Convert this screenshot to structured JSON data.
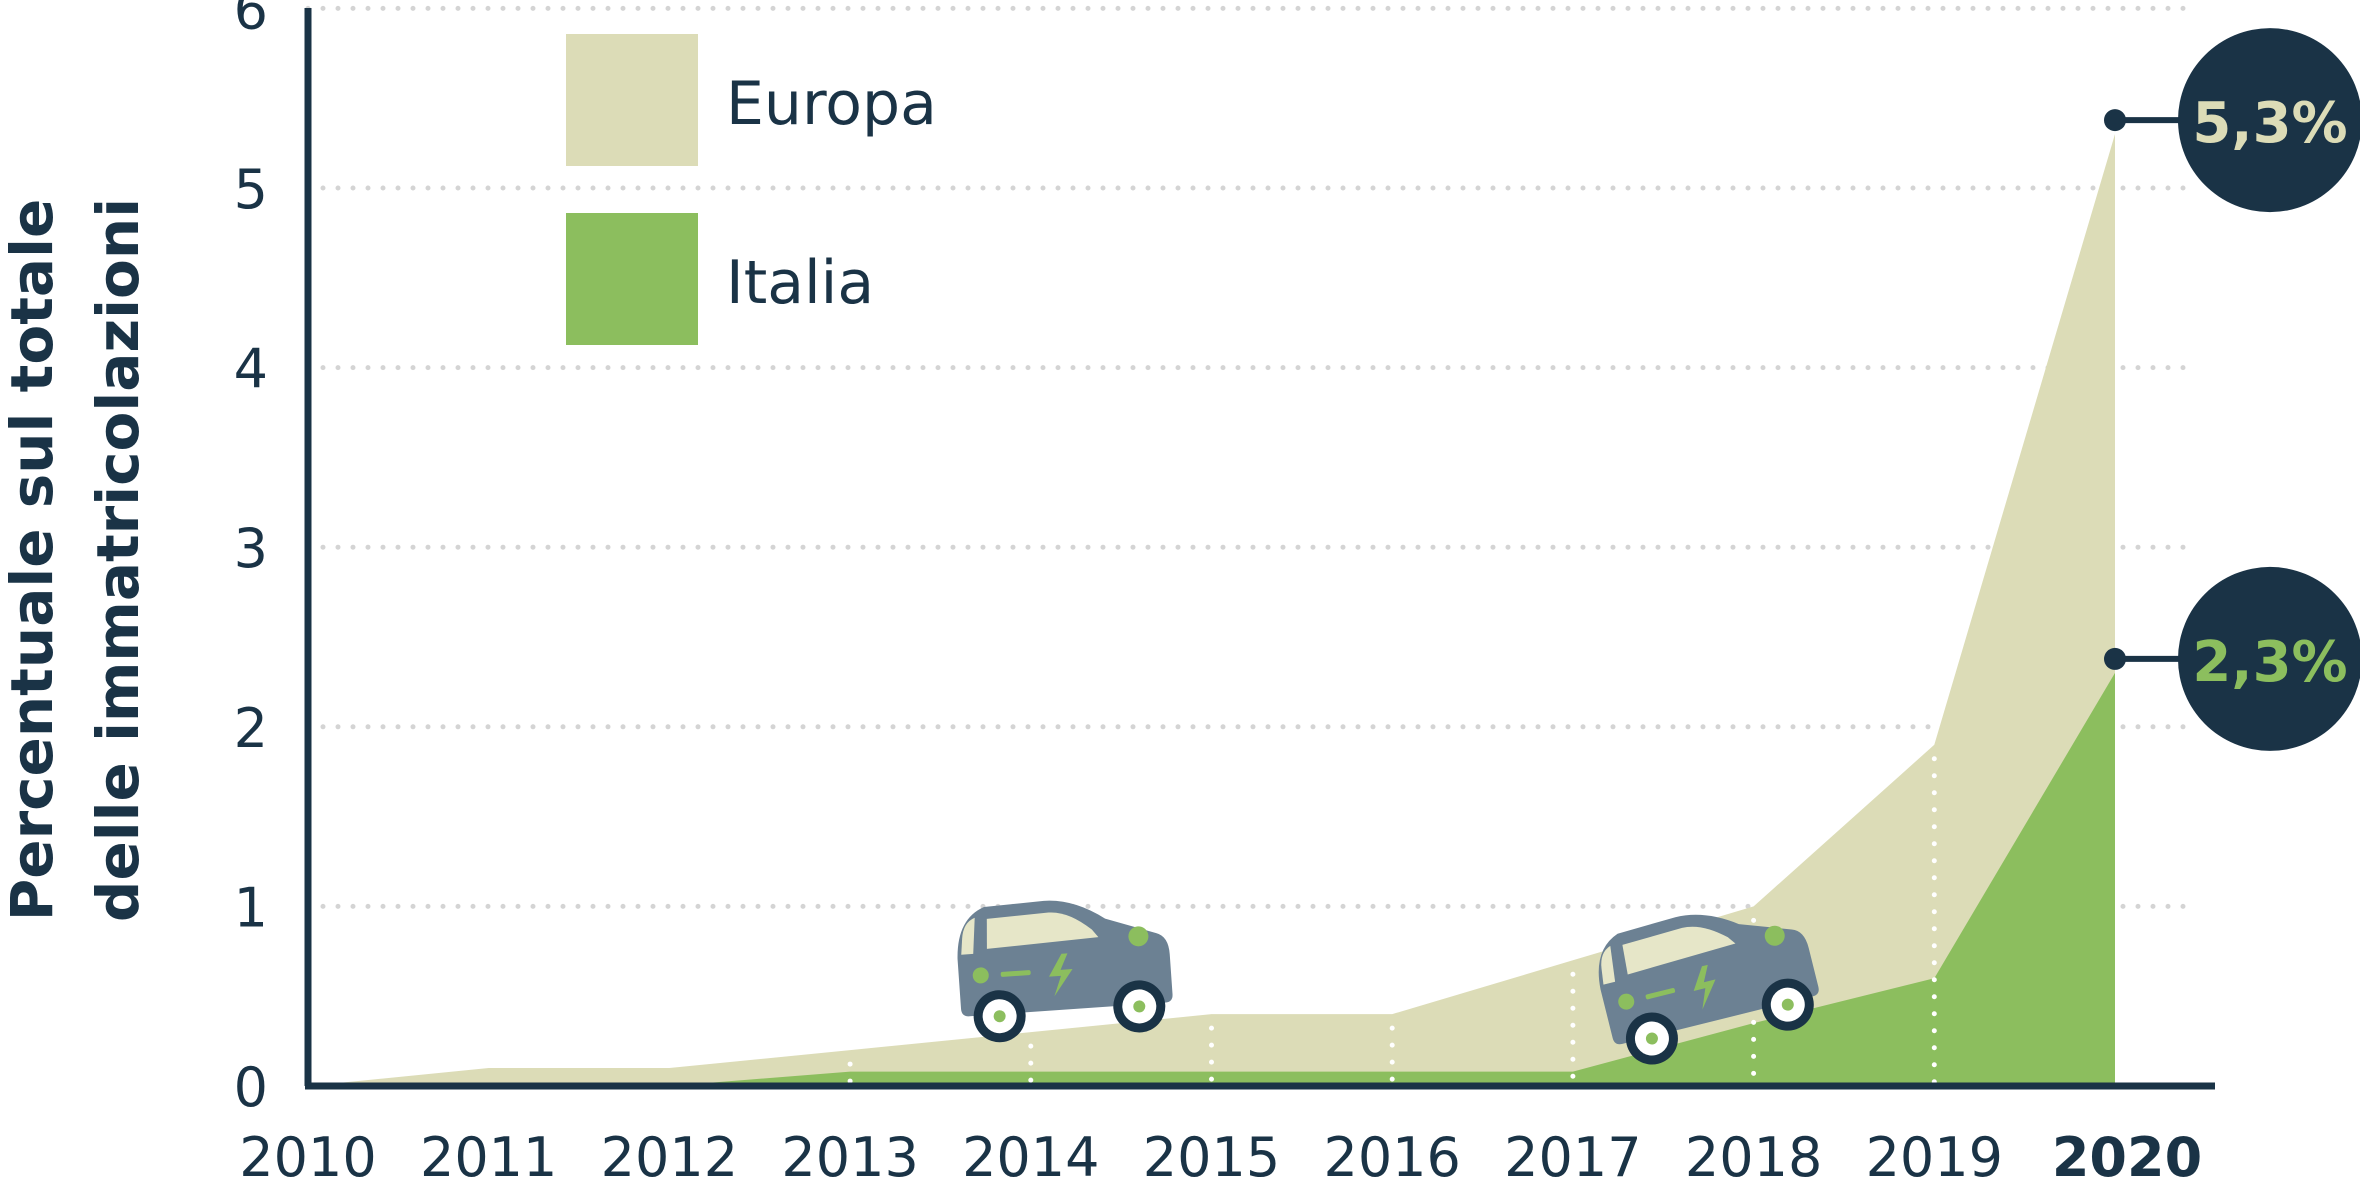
{
  "chart_data": {
    "type": "area",
    "title": "",
    "xlabel": "",
    "ylabel": [
      "Percentuale sul totale",
      "delle immatricolazioni"
    ],
    "categories": [
      "2010",
      "2011",
      "2012",
      "2013",
      "2014",
      "2015",
      "2016",
      "2017",
      "2018",
      "2019",
      "2020"
    ],
    "highlight_category": "2020",
    "ylim": [
      0,
      6
    ],
    "yticks": [
      "0",
      "1",
      "2",
      "3",
      "4",
      "5",
      "6"
    ],
    "grid": "dotted horizontal",
    "legend_position": "top-left",
    "series": [
      {
        "name": "Europa",
        "color": "#dcdcb7",
        "values": [
          0,
          0.1,
          0.1,
          0.2,
          0.3,
          0.4,
          0.4,
          0.7,
          1.0,
          1.9,
          5.3
        ],
        "end_label": "5,3%",
        "end_label_color": "#dcdcb7"
      },
      {
        "name": "Italia",
        "color": "#8cbe5e",
        "values": [
          0,
          0,
          0,
          0.08,
          0.08,
          0.08,
          0.08,
          0.08,
          0.35,
          0.6,
          2.3
        ],
        "end_label": "2,3%",
        "end_label_color": "#8cbe5e"
      }
    ],
    "colors": {
      "axis": "#1a3346",
      "text": "#1a3346",
      "grid": "#d4d4d4",
      "badge": "#1a3346",
      "car_body": "#6c8193",
      "car_window": "#e6e6c8",
      "car_accent": "#8cbe5e"
    },
    "decorations": [
      "electric-car-icon",
      "electric-car-icon"
    ]
  }
}
